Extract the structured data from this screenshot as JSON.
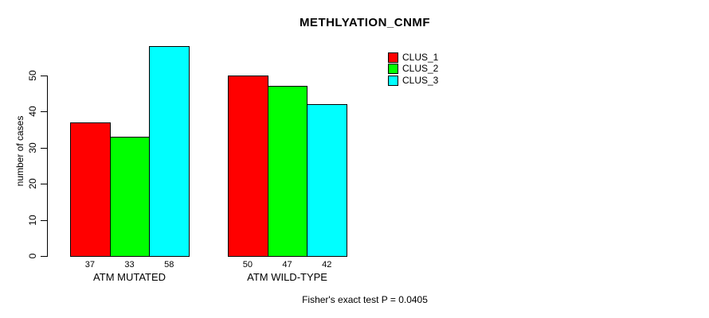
{
  "title": "METHLYATION_CNMF",
  "footer": "Fisher's exact test P = 0.0405",
  "colors": {
    "background": "#ffffff",
    "axis": "#000000",
    "text": "#000000",
    "clus_1": "#ff0000",
    "clus_2": "#00ff00",
    "clus_3": "#00ffff"
  },
  "chart_data": {
    "type": "bar",
    "title": "METHLYATION_CNMF",
    "xlabel": "",
    "ylabel": "number of cases",
    "categories": [
      "ATM MUTATED",
      "ATM WILD-TYPE"
    ],
    "series": [
      {
        "name": "CLUS_1",
        "color": "#ff0000",
        "values": [
          37,
          50
        ]
      },
      {
        "name": "CLUS_2",
        "color": "#00ff00",
        "values": [
          33,
          47
        ]
      },
      {
        "name": "CLUS_3",
        "color": "#00ffff",
        "values": [
          58,
          42
        ]
      }
    ],
    "bar_value_labels": [
      [
        "37",
        "33",
        "58"
      ],
      [
        "50",
        "47",
        "42"
      ]
    ],
    "yticks": [
      0,
      10,
      20,
      30,
      40,
      50
    ],
    "ylim": [
      0,
      60
    ],
    "grid": false,
    "legend_position": "top-right",
    "legend_entries": [
      "CLUS_1",
      "CLUS_2",
      "CLUS_3"
    ],
    "annotation": "Fisher's exact test P = 0.0405"
  }
}
